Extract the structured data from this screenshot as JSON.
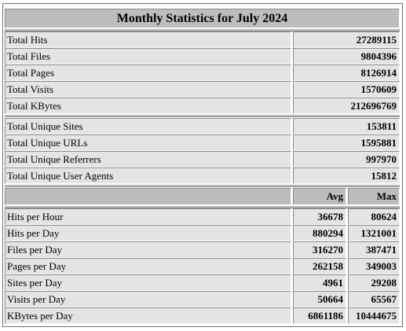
{
  "title": "Monthly Statistics for July 2024",
  "totals": [
    {
      "label": "Total Hits",
      "value": "27289115"
    },
    {
      "label": "Total Files",
      "value": "9804396"
    },
    {
      "label": "Total Pages",
      "value": "8126914"
    },
    {
      "label": "Total Visits",
      "value": "1570609"
    },
    {
      "label": "Total KBytes",
      "value": "212696769"
    }
  ],
  "uniques": [
    {
      "label": "Total Unique Sites",
      "value": "153811"
    },
    {
      "label": "Total Unique URLs",
      "value": "1595881"
    },
    {
      "label": "Total Unique Referrers",
      "value": "997970"
    },
    {
      "label": "Total Unique User Agents",
      "value": "15812"
    }
  ],
  "averages": {
    "avg_header": "Avg",
    "max_header": "Max",
    "rows": [
      {
        "label": "Hits per Hour",
        "avg": "36678",
        "max": "80624"
      },
      {
        "label": "Hits per Day",
        "avg": "880294",
        "max": "1321001"
      },
      {
        "label": "Files per Day",
        "avg": "316270",
        "max": "387471"
      },
      {
        "label": "Pages per Day",
        "avg": "262158",
        "max": "349003"
      },
      {
        "label": "Sites per Day",
        "avg": "4961",
        "max": "29208"
      },
      {
        "label": "Visits per Day",
        "avg": "50664",
        "max": "65567"
      },
      {
        "label": "KBytes per Day",
        "avg": "6861186",
        "max": "10444675"
      }
    ]
  }
}
